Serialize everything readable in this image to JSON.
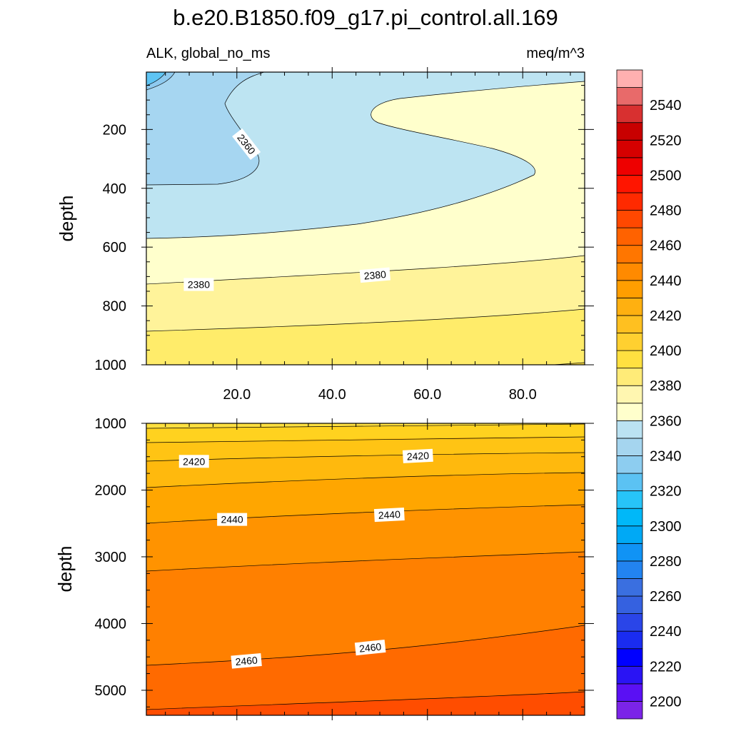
{
  "chart_data": {
    "type": "contour",
    "title": "b.e20.B1850.f09_g17.pi_control.all.169",
    "left_string": "ALK, global_no_ms",
    "right_string": "meq/m^3",
    "ylabel": "depth",
    "x_ticks": [
      "20.0",
      "40.0",
      "60.0",
      "80.0"
    ],
    "x_tick_values": [
      20,
      40,
      60,
      80
    ],
    "xlim": [
      1,
      93
    ],
    "panels": [
      {
        "name": "upper",
        "ylim": [
          1000,
          5
        ],
        "y_ticks": [
          "200",
          "400",
          "600",
          "800",
          "1000"
        ],
        "y_tick_values": [
          200,
          400,
          600,
          800,
          1000
        ],
        "contour_labels": [
          {
            "text": "2360",
            "x": 22,
            "y": 250,
            "angle": 52
          },
          {
            "text": "2380",
            "x": 12,
            "y": 727,
            "angle": 0
          },
          {
            "text": "2380",
            "x": 49,
            "y": 695,
            "angle": -5
          }
        ]
      },
      {
        "name": "lower",
        "ylim": [
          5375,
          1000
        ],
        "y_ticks": [
          "1000",
          "2000",
          "3000",
          "4000",
          "5000"
        ],
        "y_tick_values": [
          1000,
          2000,
          3000,
          4000,
          5000
        ],
        "contour_labels": [
          {
            "text": "2420",
            "x": 11,
            "y": 1570,
            "angle": 0
          },
          {
            "text": "2420",
            "x": 58,
            "y": 1490,
            "angle": -3
          },
          {
            "text": "2440",
            "x": 19,
            "y": 2440,
            "angle": 0
          },
          {
            "text": "2440",
            "x": 52,
            "y": 2370,
            "angle": -3
          },
          {
            "text": "2460",
            "x": 22,
            "y": 4560,
            "angle": -5
          },
          {
            "text": "2460",
            "x": 48,
            "y": 4360,
            "angle": -6
          }
        ]
      }
    ],
    "colorbar": {
      "tick_labels": [
        "2200",
        "2220",
        "2240",
        "2260",
        "2280",
        "2300",
        "2320",
        "2340",
        "2360",
        "2380",
        "2400",
        "2420",
        "2440",
        "2460",
        "2480",
        "2500",
        "2520",
        "2540"
      ],
      "colors": [
        "#7b24e8",
        "#5a10f4",
        "#2a14f4",
        "#0000ff",
        "#1a2cf0",
        "#2a45e8",
        "#3561e0",
        "#3a6fe0",
        "#2283f0",
        "#1093f5",
        "#00a9f5",
        "#00b8f8",
        "#27c4f8",
        "#5bc2f3",
        "#8dcdf0",
        "#a5d5ef",
        "#bbe2f2",
        "#ffffcc",
        "#fff6b0",
        "#ffeb78",
        "#ffe040",
        "#ffd030",
        "#ffc020",
        "#ffb010",
        "#ff9e00",
        "#ff8a00",
        "#ff7600",
        "#ff6200",
        "#ff4800",
        "#ff2a00",
        "#ff1500",
        "#ee0000",
        "#d60000",
        "#c80000",
        "#d83030",
        "#e86a6a",
        "#ffb0b0"
      ]
    }
  }
}
